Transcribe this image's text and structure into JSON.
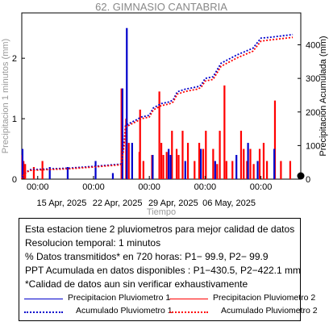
{
  "chart_data": {
    "type": "bar+line",
    "title": "62. GIMNASIO CANTABRIA",
    "xlabel": "Tiempo",
    "ylabel_left": "Precipitacion 1 minutos (mm)",
    "ylabel_right": "Precipitacion Acumulada (mm)",
    "x_range": [
      "2025-04-10T00:00",
      "2025-05-15T00:00"
    ],
    "ylim_left": [
      0,
      2.75
    ],
    "ylim_right": [
      0,
      495
    ],
    "y_ticks_left": [
      "0",
      "1",
      "2"
    ],
    "y_ticks_right": [
      "0",
      "100",
      "200",
      "300",
      "400"
    ],
    "x_ticks": [
      {
        "date": "2025-04-12T00:00",
        "time": "00:00",
        "day": ""
      },
      {
        "date": "2025-04-15T00:00",
        "time": "",
        "day": "15 Apr, 2025"
      },
      {
        "date": "2025-04-19T00:00",
        "time": "00:00",
        "day": ""
      },
      {
        "date": "2025-04-22T00:00",
        "time": "",
        "day": "22 Apr, 2025"
      },
      {
        "date": "2025-04-26T00:00",
        "time": "00:00",
        "day": ""
      },
      {
        "date": "2025-04-29T00:00",
        "time": "",
        "day": "29 Apr, 2025"
      },
      {
        "date": "2025-05-03T00:00",
        "time": "00:00",
        "day": ""
      },
      {
        "date": "2025-05-06T00:00",
        "time": "",
        "day": "06 May, 2025"
      },
      {
        "date": "2025-05-10T00:00",
        "time": "00:00",
        "day": ""
      }
    ],
    "series": [
      {
        "name": "Precipitacion Pluviometro 1",
        "kind": "bars",
        "color": "#0000cc",
        "points": [
          [
            "2025-04-10T02:00",
            0.5
          ],
          [
            "2025-04-13T12:00",
            0.2
          ],
          [
            "2025-04-15T18:00",
            0.2
          ],
          [
            "2025-04-19T06:00",
            0.3
          ],
          [
            "2025-04-21T10:00",
            0.1
          ],
          [
            "2025-04-22T15:00",
            1.5
          ],
          [
            "2025-04-23T04:00",
            2.5
          ],
          [
            "2025-04-23T20:00",
            0.6
          ],
          [
            "2025-04-26T10:00",
            0.4
          ],
          [
            "2025-04-28T10:00",
            0.5
          ],
          [
            "2025-04-28T16:00",
            0.4
          ],
          [
            "2025-04-30T12:00",
            0.3
          ],
          [
            "2025-05-02T11:00",
            0.5
          ],
          [
            "2025-05-04T06:00",
            0.3
          ],
          [
            "2025-05-06T22:00",
            0.4
          ],
          [
            "2025-05-08T09:00",
            0.6
          ],
          [
            "2025-05-09T14:00",
            0.3
          ],
          [
            "2025-05-11T16:00",
            0.5
          ]
        ]
      },
      {
        "name": "Precipitacion Pluviometro 2",
        "kind": "bars",
        "color": "#ff0000",
        "points": [
          [
            "2025-04-10T01:00",
            0.4
          ],
          [
            "2025-04-10T05:00",
            0.3
          ],
          [
            "2025-04-10T10:00",
            0.25
          ],
          [
            "2025-04-11T12:00",
            0.2
          ],
          [
            "2025-04-12T14:00",
            0.3
          ],
          [
            "2025-04-22T12:00",
            1.5
          ],
          [
            "2025-04-23T02:00",
            1.0
          ],
          [
            "2025-04-23T10:00",
            0.6
          ],
          [
            "2025-04-24T18:00",
            0.45
          ],
          [
            "2025-04-24T20:00",
            1.15
          ],
          [
            "2025-04-25T06:00",
            0.3
          ],
          [
            "2025-04-26T08:00",
            0.4
          ],
          [
            "2025-04-27T06:00",
            1.45
          ],
          [
            "2025-04-27T12:00",
            0.6
          ],
          [
            "2025-04-27T18:00",
            0.4
          ],
          [
            "2025-04-28T04:00",
            0.45
          ],
          [
            "2025-04-28T20:00",
            0.8
          ],
          [
            "2025-04-29T10:00",
            0.5
          ],
          [
            "2025-04-29T16:00",
            0.4
          ],
          [
            "2025-04-30T04:00",
            0.8
          ],
          [
            "2025-04-30T20:00",
            0.6
          ],
          [
            "2025-05-01T16:00",
            0.3
          ],
          [
            "2025-05-02T06:00",
            0.6
          ],
          [
            "2025-05-02T18:00",
            0.5
          ],
          [
            "2025-05-03T02:00",
            0.8
          ],
          [
            "2025-05-04T00:00",
            0.5
          ],
          [
            "2025-05-04T12:00",
            0.25
          ],
          [
            "2025-05-04T20:00",
            0.8
          ],
          [
            "2025-05-05T10:00",
            1.55
          ],
          [
            "2025-05-05T16:00",
            0.3
          ],
          [
            "2025-05-06T10:00",
            0.3
          ],
          [
            "2025-05-07T12:00",
            0.8
          ],
          [
            "2025-05-07T20:00",
            0.5
          ],
          [
            "2025-05-08T06:00",
            0.3
          ],
          [
            "2025-05-08T16:00",
            0.5
          ],
          [
            "2025-05-09T02:00",
            0.25
          ],
          [
            "2025-05-09T20:00",
            0.5
          ],
          [
            "2025-05-10T08:00",
            0.6
          ],
          [
            "2025-05-10T18:00",
            0.3
          ],
          [
            "2025-05-11T18:00",
            1.3
          ],
          [
            "2025-05-12T12:00",
            0.3
          ],
          [
            "2025-05-13T16:00",
            0.3
          ]
        ]
      },
      {
        "name": "Acumulado Pluviometro 1",
        "kind": "cumulative",
        "color": "#0000cc",
        "points": [
          [
            "2025-04-10T00:00",
            0
          ],
          [
            "2025-04-10T06:00",
            15
          ],
          [
            "2025-04-11T00:00",
            28
          ],
          [
            "2025-04-13T00:00",
            30
          ],
          [
            "2025-04-16T00:00",
            33
          ],
          [
            "2025-04-19T00:00",
            38
          ],
          [
            "2025-04-22T12:00",
            45
          ],
          [
            "2025-04-22T20:00",
            105
          ],
          [
            "2025-04-23T00:00",
            160
          ],
          [
            "2025-04-24T12:00",
            178
          ],
          [
            "2025-04-25T00:00",
            185
          ],
          [
            "2025-04-26T00:00",
            190
          ],
          [
            "2025-04-26T12:00",
            212
          ],
          [
            "2025-04-27T12:00",
            225
          ],
          [
            "2025-04-28T12:00",
            230
          ],
          [
            "2025-04-29T00:00",
            236
          ],
          [
            "2025-04-29T12:00",
            260
          ],
          [
            "2025-04-30T12:00",
            268
          ],
          [
            "2025-05-02T00:00",
            275
          ],
          [
            "2025-05-02T12:00",
            280
          ],
          [
            "2025-05-03T00:00",
            300
          ],
          [
            "2025-05-04T00:00",
            305
          ],
          [
            "2025-05-05T00:00",
            345
          ],
          [
            "2025-05-07T00:00",
            370
          ],
          [
            "2025-05-08T00:00",
            380
          ],
          [
            "2025-05-09T00:00",
            390
          ],
          [
            "2025-05-10T00:00",
            420
          ],
          [
            "2025-05-11T00:00",
            422
          ],
          [
            "2025-05-14T00:00",
            430.5
          ]
        ]
      },
      {
        "name": "Acumulado Pluviometro 2",
        "kind": "cumulative",
        "color": "#ff0000",
        "points": [
          [
            "2025-04-10T00:00",
            0
          ],
          [
            "2025-04-10T06:00",
            15
          ],
          [
            "2025-04-11T00:00",
            26
          ],
          [
            "2025-04-13T00:00",
            28
          ],
          [
            "2025-04-16T00:00",
            31
          ],
          [
            "2025-04-19T00:00",
            36
          ],
          [
            "2025-04-22T12:00",
            43
          ],
          [
            "2025-04-22T20:00",
            100
          ],
          [
            "2025-04-23T00:00",
            155
          ],
          [
            "2025-04-24T12:00",
            173
          ],
          [
            "2025-04-25T00:00",
            180
          ],
          [
            "2025-04-26T00:00",
            185
          ],
          [
            "2025-04-26T12:00",
            206
          ],
          [
            "2025-04-27T12:00",
            219
          ],
          [
            "2025-04-28T12:00",
            224
          ],
          [
            "2025-04-29T00:00",
            230
          ],
          [
            "2025-04-29T12:00",
            253
          ],
          [
            "2025-04-30T12:00",
            261
          ],
          [
            "2025-05-02T00:00",
            268
          ],
          [
            "2025-05-02T12:00",
            273
          ],
          [
            "2025-05-03T00:00",
            292
          ],
          [
            "2025-05-04T00:00",
            297
          ],
          [
            "2025-05-05T00:00",
            336
          ],
          [
            "2025-05-07T00:00",
            361
          ],
          [
            "2025-05-08T00:00",
            371
          ],
          [
            "2025-05-09T00:00",
            381
          ],
          [
            "2025-05-10T00:00",
            411
          ],
          [
            "2025-05-11T00:00",
            414
          ],
          [
            "2025-05-14T00:00",
            422.1
          ]
        ]
      }
    ],
    "end_marker_right_value": 0
  },
  "info": {
    "line1": "Esta estacion tiene 2 pluviometros para mejor calidad de datos",
    "line2": "Resolucion temporal: 1 minutos",
    "line3": "% Datos transmitidos* en 720 horas: P1− 99.9, P2− 99.9",
    "line4": "PPT Acumulada en datos disponibles : P1−430.5, P2−422.1 mm",
    "line5": "*Calidad de datos aun sin verificar exhaustivamente"
  },
  "legend": {
    "p1_rain": "Precipitacion Pluviometro 1",
    "p2_rain": "Precipitacion Pluviometro 2",
    "p1_acc": "Acumulado Pluviometro 1",
    "p2_acc": "Acumulado Pluviometro 2"
  },
  "colors": {
    "p1": "#0000cc",
    "p2": "#ff0000",
    "title": "#888888"
  }
}
